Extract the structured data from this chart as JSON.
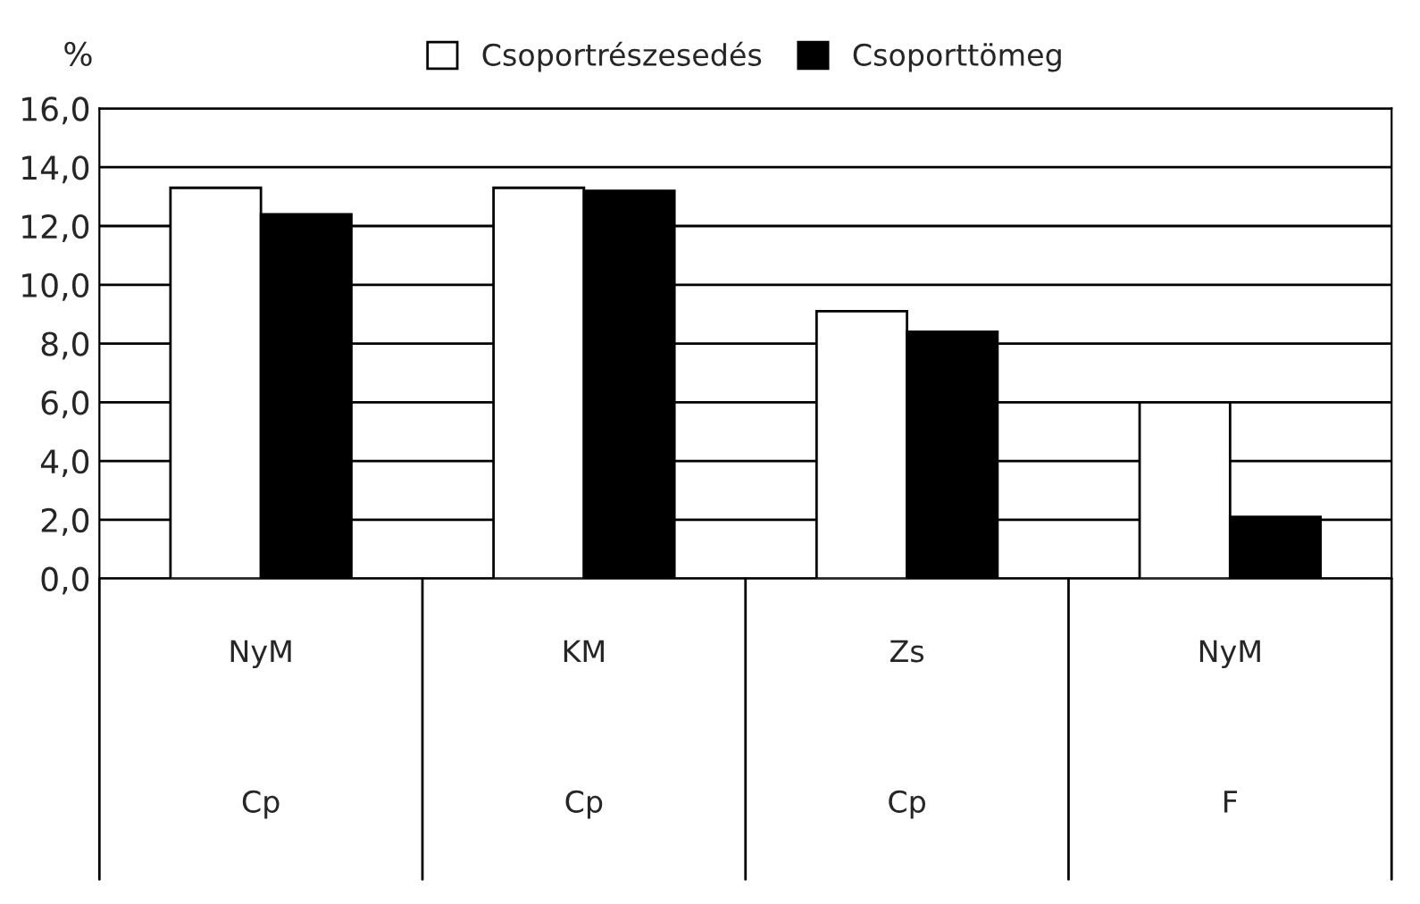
{
  "chart_data": {
    "type": "bar",
    "ylabel": "%",
    "categories": [
      "NyM\nCp",
      "KM\nCp",
      "Zs\nCp",
      "NyM\nF"
    ],
    "series": [
      {
        "name": "Csoportrészesedés",
        "color": "#ffffff",
        "values": [
          13.3,
          13.3,
          9.1,
          6.0
        ]
      },
      {
        "name": "Csoporttömeg",
        "color": "#000000",
        "values": [
          12.4,
          13.2,
          8.4,
          2.1
        ]
      }
    ],
    "ylim": [
      0,
      16
    ],
    "yticks": [
      {
        "value": 0,
        "label": "0,0"
      },
      {
        "value": 2,
        "label": "2,0"
      },
      {
        "value": 4,
        "label": "4,0"
      },
      {
        "value": 6,
        "label": "6,0"
      },
      {
        "value": 8,
        "label": "8,0"
      },
      {
        "value": 10,
        "label": "10,0"
      },
      {
        "value": 12,
        "label": "12,0"
      },
      {
        "value": 14,
        "label": "14,0"
      },
      {
        "value": 16,
        "label": "16,0"
      }
    ],
    "grid": "y",
    "legend": "top"
  }
}
